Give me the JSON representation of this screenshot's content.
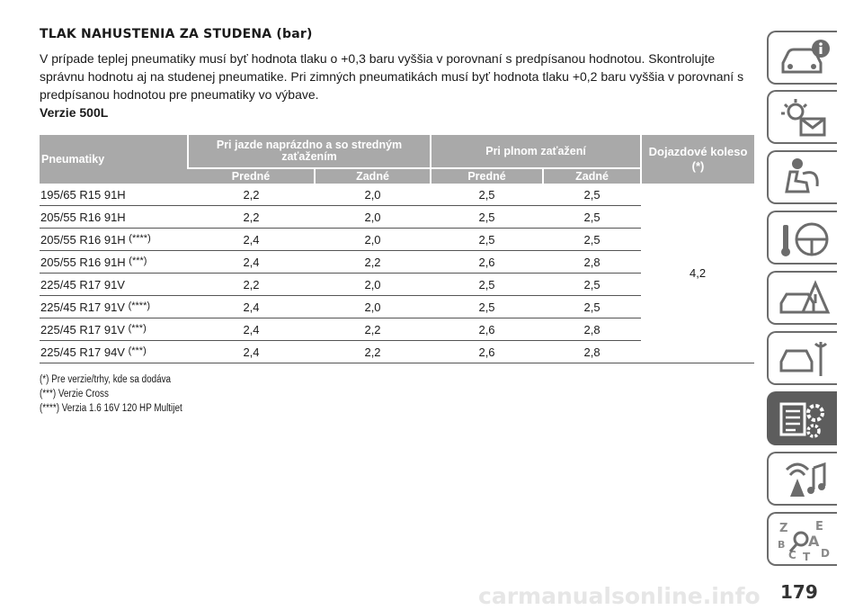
{
  "heading": "TLAK NAHUSTENIA ZA STUDENA (bar)",
  "intro": "V prípade teplej pneumatiky musí byť hodnota tlaku o +0,3 baru vyššia v porovnaní s predpísanou hodnotou. Skontrolujte správnu hodnotu aj na studenej pneumatike. Pri zimných pneumatikách musí byť hodnota tlaku +0,2 baru vyššia v porovnaní s predpísanou hodnotou pre pneumatiky vo výbave.",
  "version": "Verzie 500L",
  "table": {
    "col_tire": "Pneumatiky",
    "col_normal": "Pri jazde naprázdno a so stredným zaťažením",
    "col_full": "Pri plnom zaťažení",
    "col_spare": "Dojazdové koleso (*)",
    "sub_front": "Predné",
    "sub_rear": "Zadné",
    "spare_value": "4,2",
    "rows": [
      {
        "tire": "195/65 R15 91H",
        "mark": "",
        "nf": "2,2",
        "nr": "2,0",
        "ff": "2,5",
        "fr": "2,5"
      },
      {
        "tire": "205/55 R16 91H",
        "mark": "",
        "nf": "2,2",
        "nr": "2,0",
        "ff": "2,5",
        "fr": "2,5"
      },
      {
        "tire": "205/55 R16 91H ",
        "mark": "(****)",
        "nf": "2,4",
        "nr": "2,0",
        "ff": "2,5",
        "fr": "2,5"
      },
      {
        "tire": "205/55 R16 91H ",
        "mark": "(***)",
        "nf": "2,4",
        "nr": "2,2",
        "ff": "2,6",
        "fr": "2,8"
      },
      {
        "tire": "225/45 R17 91V",
        "mark": "",
        "nf": "2,2",
        "nr": "2,0",
        "ff": "2,5",
        "fr": "2,5"
      },
      {
        "tire": "225/45 R17 91V ",
        "mark": "(****)",
        "nf": "2,4",
        "nr": "2,0",
        "ff": "2,5",
        "fr": "2,5"
      },
      {
        "tire": "225/45 R17 91V ",
        "mark": "(***)",
        "nf": "2,4",
        "nr": "2,2",
        "ff": "2,6",
        "fr": "2,8"
      },
      {
        "tire": "225/45 R17 94V ",
        "mark": "(***)",
        "nf": "2,4",
        "nr": "2,2",
        "ff": "2,6",
        "fr": "2,8"
      }
    ]
  },
  "notes": [
    "(*) Pre verzie/trhy, kde sa dodáva",
    "(***) Verzie Cross",
    "(****) Verzia 1.6 16V 120 HP Multijet"
  ],
  "sidebar_tabs": [
    {
      "icon": "car-info-icon",
      "active": false
    },
    {
      "icon": "warning-lights-icon",
      "active": false
    },
    {
      "icon": "airbag-seat-icon",
      "active": false
    },
    {
      "icon": "key-steering-wheel-icon",
      "active": false
    },
    {
      "icon": "emergency-triangle-icon",
      "active": false
    },
    {
      "icon": "car-service-icon",
      "active": false
    },
    {
      "icon": "specs-gear-icon",
      "active": true
    },
    {
      "icon": "multimedia-icon",
      "active": false
    },
    {
      "icon": "alphabetical-index-icon",
      "active": false
    }
  ],
  "page_number": "179",
  "watermark": "carmanualsonline.info",
  "colors": {
    "header_bg": "#a9a9a9",
    "active_tab": "#5d5d5d",
    "tab_border": "#6c6c6c"
  }
}
